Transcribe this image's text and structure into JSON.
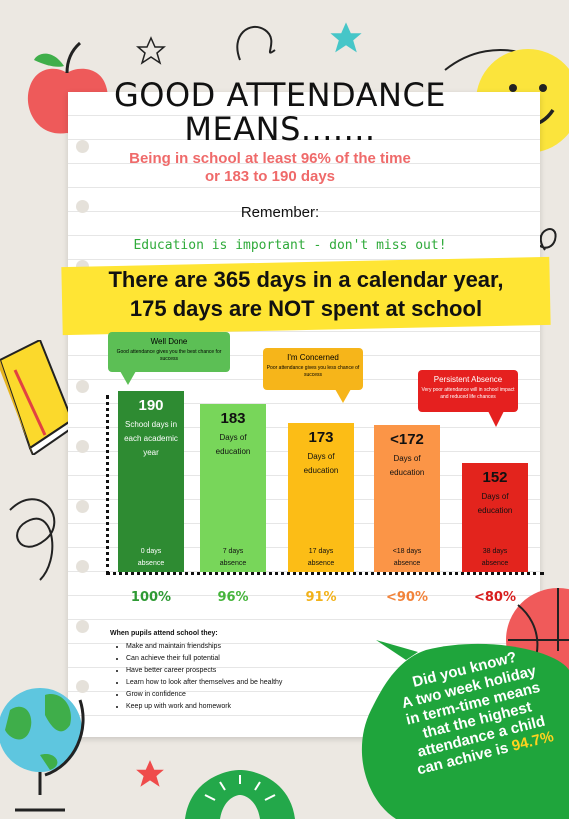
{
  "header": {
    "title_line1": "GOOD ATTENDANCE",
    "title_line2": "MEANS.......",
    "subtitle_line1": "Being in school at least 96% of the time",
    "subtitle_line2": "or 183 to 190 days",
    "remember": "Remember:",
    "education": "Education is important - don't miss out!"
  },
  "banner": {
    "line1": "There are 365 days in a calendar year,",
    "line2": "175 days are NOT spent at school"
  },
  "bubbles": [
    {
      "title": "Well Done",
      "text": "Good attendance gives you the best chance for success",
      "color": "#5cbf55"
    },
    {
      "title": "I'm Concerned",
      "text": "Poor attendance gives you less chance of success",
      "color": "#f6b51a"
    },
    {
      "title": "Persistent Absence",
      "text": "Very poor attendance will in school impact and reduced life chances",
      "color": "#e5201f"
    }
  ],
  "chart_data": {
    "type": "bar",
    "categories": [
      "190",
      "183",
      "173",
      "<172",
      "152"
    ],
    "values": [
      190,
      183,
      173,
      172,
      152
    ],
    "bar_labels": [
      "School days in each academic year",
      "Days of education",
      "Days of education",
      "Days of education",
      "Days of education"
    ],
    "absence_labels": [
      "0 days absence",
      "7 days absence",
      "17 days absence",
      "<18 days absence",
      "38 days absence"
    ],
    "percentages": [
      "100%",
      "96%",
      "91%",
      "<90%",
      "<80%"
    ],
    "colors": [
      "#2e8b32",
      "#78d65a",
      "#fcbd16",
      "#fb9547",
      "#e3241d"
    ],
    "pct_colors": [
      "#2e9a34",
      "#46b53c",
      "#f2b21a",
      "#f2833a",
      "#d81e1e"
    ]
  },
  "list": {
    "heading": "When pupils attend school they:",
    "items": [
      "Make and maintain friendships",
      "Can achieve their full potential",
      "Have better career prospects",
      "Learn how to look after themselves and be healthy",
      "Grow in confidence",
      "Keep up with work and homework"
    ]
  },
  "did_you_know": {
    "heading": "Did you know?",
    "line1": "A two week holiday",
    "line2": "in term-time means",
    "line3": "that the highest",
    "line4": "attendance a child",
    "line5": "can achive is",
    "highlight": "94.7%"
  },
  "icons": [
    "apple-icon",
    "star-icon",
    "smiley-icon",
    "book-icon",
    "globe-icon",
    "basketball-icon",
    "protractor-icon"
  ]
}
